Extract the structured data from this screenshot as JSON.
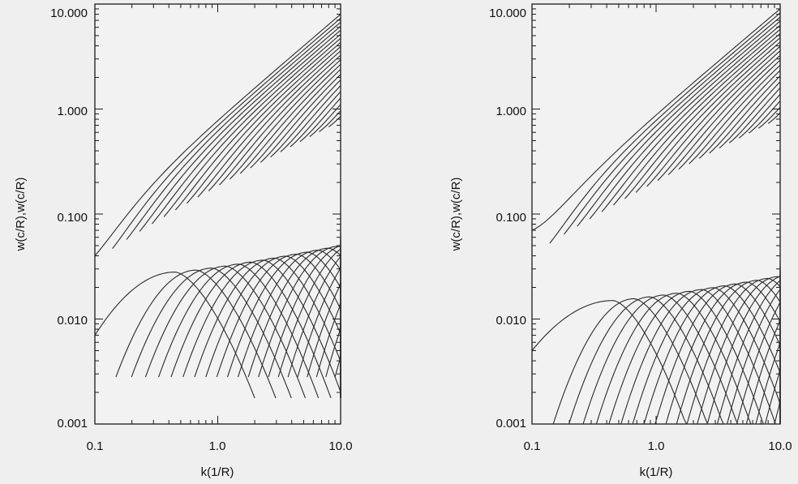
{
  "chart_data": [
    {
      "type": "line",
      "title": "",
      "xlabel": "k(1/R)",
      "ylabel": "w(c/R),w(c/R)",
      "xscale": "log",
      "yscale": "log",
      "xlim": [
        0.1,
        10.0
      ],
      "ylim": [
        0.001,
        10.0
      ],
      "xticks": [
        "0.1",
        "1.0",
        "10.0"
      ],
      "yticks": [
        "0.001",
        "0.010",
        "0.100",
        "1.000",
        "10.000"
      ],
      "grid": false,
      "legend": "none",
      "color": "#2a2a2a",
      "real_branch": {
        "k_start_first": 0.1,
        "w_start_first": 0.04,
        "w_at_k10": 8.0,
        "w_at_k10_last": 1.3,
        "count": 22
      },
      "imag_branch": {
        "k_start_first": 0.1,
        "w_start_first": 0.007,
        "w_peak_first": 0.028,
        "w_floor": 0.0028,
        "w_peak_last": 0.07,
        "count": 22
      }
    },
    {
      "type": "line",
      "title": "",
      "xlabel": "k(1/R)",
      "ylabel": "w(c/R),w(c/R)",
      "xscale": "log",
      "yscale": "log",
      "xlim": [
        0.1,
        10.0
      ],
      "ylim": [
        0.001,
        10.0
      ],
      "xticks": [
        "0.1",
        "1.0",
        "10.0"
      ],
      "yticks": [
        "0.001",
        "0.010",
        "0.100",
        "1.000",
        "10.000"
      ],
      "grid": false,
      "legend": "none",
      "color": "#2a2a2a",
      "real_branch": {
        "k_start_first": 0.1,
        "w_start_first": 0.07,
        "w_at_k10": 9.0,
        "w_at_k10_last": 1.4,
        "count": 22
      },
      "imag_branch": {
        "k_start_first": 0.1,
        "w_start_first": 0.005,
        "w_peak_first": 0.015,
        "w_floor": 0.001,
        "w_peak_last": 0.035,
        "count": 22
      }
    }
  ]
}
